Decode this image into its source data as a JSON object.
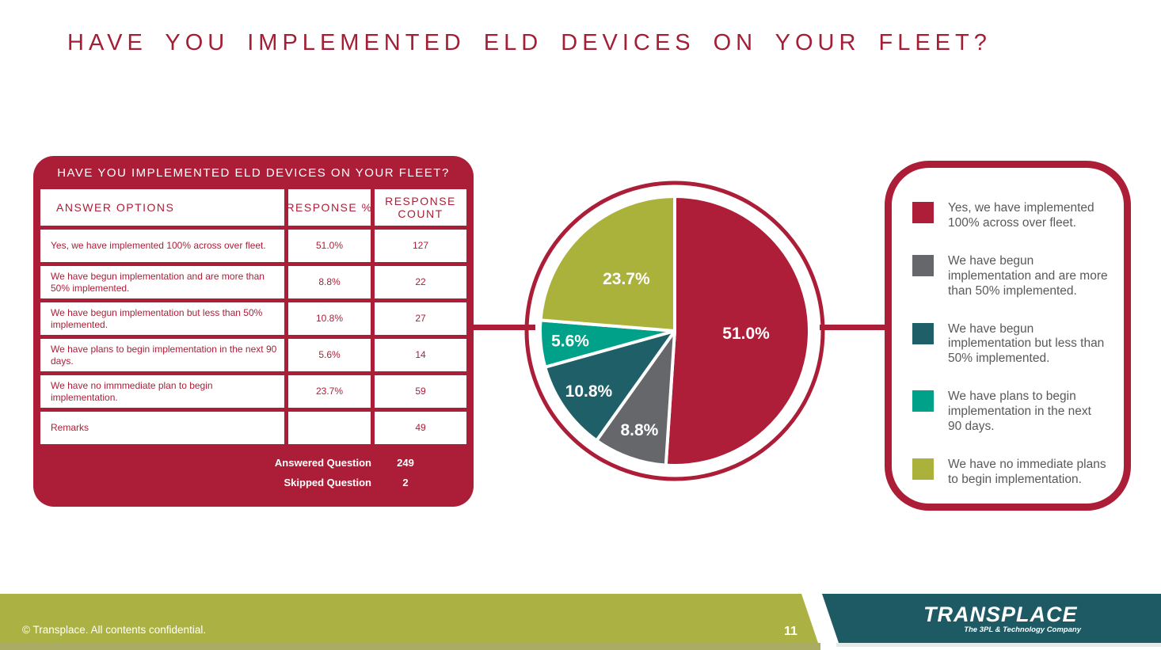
{
  "slide": {
    "title": "HAVE YOU IMPLEMENTED ELD DEVICES ON YOUR FLEET?",
    "page_number": "11",
    "footer_copyright": "© Transplace. All contents confidential.",
    "logo": {
      "name": "TRANSPLACE",
      "tagline": "The 3PL & Technology Company"
    }
  },
  "colors": {
    "crimson": "#AC1E37",
    "gray": "#66676B",
    "dark_teal": "#1F5F68",
    "teal": "#00A189",
    "olive": "#ABB23C",
    "footer_olive": "#ABB243",
    "footer_teal": "#1D5A64",
    "legend_text": "#58595B"
  },
  "table": {
    "title": "HAVE YOU IMPLEMENTED ELD DEVICES ON YOUR FLEET?",
    "columns": [
      "ANSWER OPTIONS",
      "RESPONSE %",
      "RESPONSE COUNT"
    ],
    "rows": [
      {
        "option": "Yes, we have implemented 100% across over fleet.",
        "pct": "51.0%",
        "count": "127"
      },
      {
        "option": "We have begun implementation and are more than 50% implemented.",
        "pct": "8.8%",
        "count": "22"
      },
      {
        "option": "We have begun implementation but less than 50% implemented.",
        "pct": "10.8%",
        "count": "27"
      },
      {
        "option": "We have plans to begin implementation in the next 90 days.",
        "pct": "5.6%",
        "count": "14"
      },
      {
        "option": "We have no immmediate plan to begin implementation.",
        "pct": "23.7%",
        "count": "59"
      },
      {
        "option": "Remarks",
        "pct": "",
        "count": "49"
      }
    ],
    "summary": [
      {
        "label": "Answered Question",
        "value": "249"
      },
      {
        "label": "Skipped Question",
        "value": "2"
      }
    ]
  },
  "chart_data": {
    "type": "pie",
    "title": "HAVE YOU IMPLEMENTED ELD DEVICES ON YOUR FLEET?",
    "labels": [
      "Yes, we have implemented 100% across over fleet.",
      "We have begun implementation and are more than 50% implemented.",
      "We have begun implementation but less than 50% implemented.",
      "We have plans to begin implementation in the next 90 days.",
      "We have no immediate plans to begin implementation."
    ],
    "values": [
      51.0,
      8.8,
      10.8,
      5.6,
      23.7
    ],
    "display_labels": [
      "51.0%",
      "8.8%",
      "10.8%",
      "5.6%",
      "23.7%"
    ],
    "colors": [
      "#AE1E38",
      "#66676B",
      "#1F5F68",
      "#00A189",
      "#ABB23C"
    ],
    "start_angle_deg": 0,
    "direction": "clockwise",
    "legend_position": "right",
    "ring_color": "#AC1E37"
  },
  "legend": {
    "items": [
      {
        "label": "Yes, we have implemented 100% across over fleet.",
        "color": "#AE1E38"
      },
      {
        "label": "We have begun implementation and are more than 50% implemented.",
        "color": "#66676B"
      },
      {
        "label": "We have begun implementation but less than 50% implemented.",
        "color": "#1F5F68"
      },
      {
        "label": "We have plans to begin implementation in the next 90 days.",
        "color": "#00A189"
      },
      {
        "label": "We have no immediate plans to begin implementation.",
        "color": "#ABB23C"
      }
    ]
  }
}
